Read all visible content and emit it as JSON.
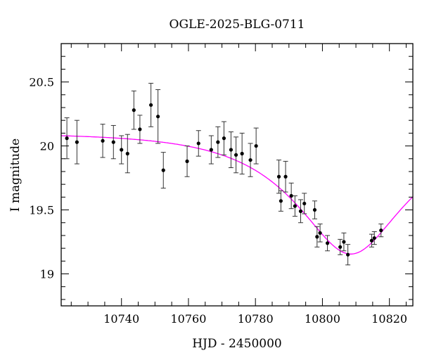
{
  "chart_data": {
    "type": "scatter",
    "title": "OGLE-2025-BLG-0711",
    "xlabel": "HJD - 2450000",
    "ylabel": "I magnitude",
    "xlim": [
      10722,
      10827
    ],
    "ylim": [
      20.8,
      18.75
    ],
    "y_inverted": true,
    "x_ticks": [
      10740,
      10760,
      10780,
      10800,
      10820
    ],
    "x_tick_labels": [
      "10740",
      "10760",
      "10780",
      "10800",
      "10820"
    ],
    "y_ticks": [
      19.0,
      19.5,
      20.0,
      20.5
    ],
    "y_tick_labels": [
      "19",
      "19.5",
      "20",
      "20.5"
    ],
    "x_minor_step": 5,
    "y_minor_step": 0.1,
    "grid": false,
    "legend": "none",
    "colors": {
      "points": "#000000",
      "model": "#ff00ff"
    },
    "series": [
      {
        "kind": "points_with_errors",
        "points": [
          {
            "x": 10723.7,
            "y": 20.06,
            "err": 0.16
          },
          {
            "x": 10726.7,
            "y": 20.03,
            "err": 0.17
          },
          {
            "x": 10734.4,
            "y": 20.04,
            "err": 0.13
          },
          {
            "x": 10737.6,
            "y": 20.03,
            "err": 0.13
          },
          {
            "x": 10740.0,
            "y": 19.97,
            "err": 0.11
          },
          {
            "x": 10741.8,
            "y": 19.94,
            "err": 0.15
          },
          {
            "x": 10743.7,
            "y": 20.28,
            "err": 0.15
          },
          {
            "x": 10745.5,
            "y": 20.13,
            "err": 0.11
          },
          {
            "x": 10748.8,
            "y": 20.32,
            "err": 0.17
          },
          {
            "x": 10750.9,
            "y": 20.23,
            "err": 0.21
          },
          {
            "x": 10752.5,
            "y": 19.81,
            "err": 0.14
          },
          {
            "x": 10759.6,
            "y": 19.88,
            "err": 0.12
          },
          {
            "x": 10763.0,
            "y": 20.02,
            "err": 0.1
          },
          {
            "x": 10766.8,
            "y": 19.97,
            "err": 0.11
          },
          {
            "x": 10768.8,
            "y": 20.03,
            "err": 0.12
          },
          {
            "x": 10770.6,
            "y": 20.06,
            "err": 0.13
          },
          {
            "x": 10772.7,
            "y": 19.97,
            "err": 0.14
          },
          {
            "x": 10774.2,
            "y": 19.93,
            "err": 0.14
          },
          {
            "x": 10776.0,
            "y": 19.94,
            "err": 0.16
          },
          {
            "x": 10778.5,
            "y": 19.89,
            "err": 0.13
          },
          {
            "x": 10780.2,
            "y": 20.0,
            "err": 0.14
          },
          {
            "x": 10787.0,
            "y": 19.76,
            "err": 0.13
          },
          {
            "x": 10787.6,
            "y": 19.57,
            "err": 0.08
          },
          {
            "x": 10789.0,
            "y": 19.76,
            "err": 0.12
          },
          {
            "x": 10790.7,
            "y": 19.61,
            "err": 0.1
          },
          {
            "x": 10791.8,
            "y": 19.53,
            "err": 0.08
          },
          {
            "x": 10793.5,
            "y": 19.49,
            "err": 0.09
          },
          {
            "x": 10794.6,
            "y": 19.55,
            "err": 0.08
          },
          {
            "x": 10797.7,
            "y": 19.5,
            "err": 0.07
          },
          {
            "x": 10798.4,
            "y": 19.29,
            "err": 0.08
          },
          {
            "x": 10799.3,
            "y": 19.32,
            "err": 0.07
          },
          {
            "x": 10801.5,
            "y": 19.24,
            "err": 0.06
          },
          {
            "x": 10805.3,
            "y": 19.21,
            "err": 0.06
          },
          {
            "x": 10806.4,
            "y": 19.25,
            "err": 0.07
          },
          {
            "x": 10807.6,
            "y": 19.15,
            "err": 0.08
          },
          {
            "x": 10814.7,
            "y": 19.26,
            "err": 0.05
          },
          {
            "x": 10815.5,
            "y": 19.28,
            "err": 0.05
          },
          {
            "x": 10817.5,
            "y": 19.34,
            "err": 0.05
          }
        ]
      },
      {
        "kind": "model_curve",
        "model": {
          "t0": 10808.5,
          "u0": 0.45,
          "tE": 30,
          "base_mag": 20.1
        }
      }
    ]
  }
}
